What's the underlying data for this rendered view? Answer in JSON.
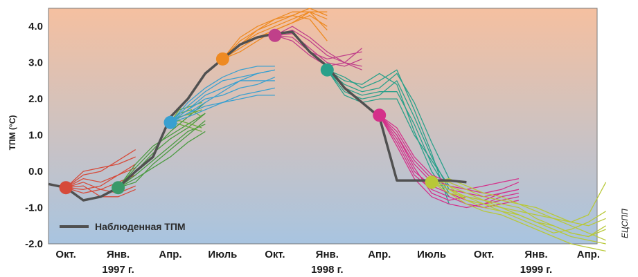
{
  "chart_data": {
    "type": "line",
    "title": "",
    "xlabel": "",
    "ylabel": "ТПМ (°C)",
    "ylim": [
      -2.0,
      4.5
    ],
    "y_ticks": [
      "4.0",
      "3.0",
      "2.0",
      "1.0",
      "0.0",
      "-1.0",
      "-2.0"
    ],
    "y_tick_values": [
      4.0,
      3.0,
      2.0,
      1.0,
      0.0,
      -1.0,
      -2.0
    ],
    "x_ticks": [
      "Окт.",
      "Янв.",
      "Апр.",
      "Июль",
      "Окт.",
      "Янв.",
      "Апр.",
      "Июль",
      "Окт.",
      "Янв.",
      "Апр."
    ],
    "x_tick_index": [
      0,
      3,
      6,
      9,
      12,
      15,
      18,
      21,
      24,
      27,
      30
    ],
    "year_labels": [
      {
        "text": "1997 г.",
        "index": 3
      },
      {
        "text": "1998 г.",
        "index": 15
      },
      {
        "text": "1999 г.",
        "index": 27
      }
    ],
    "xlim": [
      -1,
      30.5
    ],
    "grid": false,
    "legend_position": "bottom-left",
    "legend": "Наблюденная ТПМ",
    "background": {
      "top": "#f5c0a0",
      "bottom": "#a8c4e0"
    },
    "observed": {
      "name": "Наблюденная ТПМ",
      "color": "#505050",
      "x": [
        -1,
        0,
        1,
        2,
        3,
        4,
        5,
        6,
        7,
        8,
        9,
        10,
        11,
        12,
        13,
        14,
        15,
        16,
        17,
        18,
        19,
        20,
        21,
        22,
        23
      ],
      "y": [
        -0.35,
        -0.45,
        -0.8,
        -0.7,
        -0.45,
        0.0,
        0.4,
        1.5,
        2.0,
        2.7,
        3.1,
        3.5,
        3.7,
        3.8,
        3.85,
        3.3,
        2.9,
        2.3,
        1.9,
        1.5,
        -0.25,
        -0.25,
        -0.25,
        -0.25,
        -0.3
      ]
    },
    "forecast_starts": [
      {
        "x": 0,
        "y": -0.45,
        "color": "#d64a3a"
      },
      {
        "x": 3,
        "y": -0.45,
        "color": "#3a9a6a"
      },
      {
        "x": 6,
        "y": 1.35,
        "color": "#3aa0d0"
      },
      {
        "x": 9,
        "y": 3.1,
        "color": "#ee8a22"
      },
      {
        "x": 12,
        "y": 3.75,
        "color": "#c0408a"
      },
      {
        "x": 15,
        "y": 2.8,
        "color": "#2aa08a"
      },
      {
        "x": 18,
        "y": 1.55,
        "color": "#d4308a"
      },
      {
        "x": 21,
        "y": -0.3,
        "color": "#b8c838"
      }
    ],
    "forecast_groups": [
      {
        "color": "#d64a3a",
        "start": [
          0,
          -0.45
        ],
        "x_offsets": [
          1,
          2,
          3,
          4
        ],
        "members": [
          [
            -0.2,
            -0.3,
            -0.1,
            0.1
          ],
          [
            -0.3,
            -0.5,
            -0.6,
            -0.4
          ],
          [
            -0.5,
            -0.4,
            -0.1,
            0.2
          ],
          [
            0.0,
            0.1,
            0.2,
            0.4
          ],
          [
            -0.4,
            -0.7,
            -0.7,
            -0.5
          ],
          [
            -0.1,
            0.0,
            0.3,
            0.6
          ],
          [
            -0.6,
            -0.5,
            -0.3,
            -0.1
          ]
        ]
      },
      {
        "color": "#4a9a40",
        "start": [
          3,
          -0.45
        ],
        "x_offsets": [
          1,
          2,
          3,
          4,
          5
        ],
        "members": [
          [
            -0.1,
            0.3,
            0.7,
            1.1,
            1.3
          ],
          [
            0.0,
            0.5,
            0.9,
            1.2,
            1.6
          ],
          [
            -0.3,
            0.2,
            0.6,
            1.0,
            1.4
          ],
          [
            0.1,
            0.6,
            1.1,
            1.5,
            1.9
          ],
          [
            -0.2,
            0.1,
            0.4,
            0.8,
            1.1
          ],
          [
            0.2,
            0.7,
            1.0,
            1.3,
            1.6
          ]
        ]
      },
      {
        "color": "#6aaa3a",
        "start": [
          6,
          1.35
        ],
        "x_offsets": [
          0.5,
          1.2,
          1.8
        ],
        "members": [
          [
            1.6,
            1.7,
            1.5
          ],
          [
            1.4,
            1.3,
            1.2
          ],
          [
            1.5,
            1.6,
            1.7
          ],
          [
            1.7,
            1.8,
            1.9
          ],
          [
            1.3,
            1.2,
            1.1
          ]
        ]
      },
      {
        "color": "#3aa0d0",
        "start": [
          6,
          1.35
        ],
        "x_offsets": [
          1,
          2,
          3,
          4,
          5,
          6
        ],
        "members": [
          [
            1.6,
            1.9,
            2.2,
            2.5,
            2.7,
            2.8
          ],
          [
            1.7,
            2.0,
            2.1,
            2.3,
            2.4,
            2.6
          ],
          [
            1.8,
            2.2,
            2.5,
            2.6,
            2.7,
            2.8
          ],
          [
            1.5,
            1.7,
            1.9,
            2.1,
            2.2,
            2.3
          ],
          [
            1.9,
            2.3,
            2.6,
            2.8,
            2.9,
            2.9
          ],
          [
            1.6,
            1.8,
            1.9,
            2.0,
            2.1,
            2.1
          ],
          [
            1.7,
            2.1,
            2.3,
            2.5,
            2.5,
            2.5
          ]
        ]
      },
      {
        "color": "#ee8a22",
        "start": [
          9,
          3.1
        ],
        "x_offsets": [
          1,
          2,
          3,
          4,
          5,
          6
        ],
        "members": [
          [
            3.5,
            3.8,
            4.0,
            4.2,
            4.4,
            4.4
          ],
          [
            3.6,
            3.9,
            4.1,
            4.3,
            4.5,
            4.3
          ],
          [
            3.4,
            3.7,
            3.9,
            4.1,
            4.3,
            4.0
          ],
          [
            3.5,
            3.9,
            4.2,
            4.4,
            4.4,
            3.9
          ],
          [
            3.7,
            4.0,
            4.2,
            4.3,
            4.2,
            3.6
          ],
          [
            3.3,
            3.6,
            3.9,
            4.1,
            4.4,
            4.2
          ]
        ]
      },
      {
        "color": "#c0408a",
        "start": [
          12,
          3.75
        ],
        "x_offsets": [
          1,
          2,
          3,
          4,
          5
        ],
        "members": [
          [
            3.9,
            3.6,
            3.2,
            3.0,
            2.9
          ],
          [
            3.8,
            3.4,
            3.0,
            2.9,
            3.1
          ],
          [
            3.7,
            3.3,
            3.1,
            3.2,
            3.3
          ],
          [
            4.0,
            3.7,
            3.3,
            3.0,
            2.8
          ],
          [
            3.6,
            3.2,
            2.9,
            3.0,
            3.4
          ]
        ]
      },
      {
        "color": "#2aa08a",
        "start": [
          15,
          2.8
        ],
        "x_offsets": [
          1,
          2,
          3,
          4,
          5,
          6,
          7
        ],
        "members": [
          [
            2.4,
            2.2,
            2.3,
            2.7,
            1.9,
            0.8,
            -0.2
          ],
          [
            2.2,
            2.0,
            2.1,
            2.5,
            1.5,
            0.4,
            -0.5
          ],
          [
            2.6,
            2.3,
            2.5,
            2.8,
            1.7,
            0.5,
            -0.9
          ],
          [
            2.3,
            2.1,
            2.2,
            2.2,
            1.3,
            0.2,
            -0.6
          ],
          [
            2.5,
            2.4,
            2.7,
            2.4,
            1.1,
            0.0,
            -0.7
          ],
          [
            2.1,
            1.9,
            2.0,
            2.0,
            1.0,
            0.3,
            -0.4
          ]
        ]
      },
      {
        "color": "#d4308a",
        "start": [
          18,
          1.55
        ],
        "x_offsets": [
          1,
          2,
          3,
          4,
          5,
          6,
          7,
          8
        ],
        "members": [
          [
            1.0,
            0.2,
            -0.3,
            -0.5,
            -0.6,
            -0.7,
            -0.6,
            -0.5
          ],
          [
            0.9,
            0.0,
            -0.4,
            -0.6,
            -0.8,
            -0.9,
            -0.8,
            -0.7
          ],
          [
            1.2,
            0.4,
            -0.1,
            -0.3,
            -0.5,
            -0.6,
            -0.5,
            -0.3
          ],
          [
            0.8,
            -0.1,
            -0.5,
            -0.7,
            -0.9,
            -1.0,
            -0.9,
            -0.8
          ],
          [
            1.1,
            0.3,
            -0.2,
            -0.4,
            -0.5,
            -0.4,
            -0.3,
            -0.2
          ],
          [
            1.0,
            0.1,
            -0.6,
            -0.8,
            -0.7,
            -0.8,
            -0.6,
            -0.5
          ],
          [
            0.7,
            -0.2,
            -0.7,
            -0.9,
            -1.0,
            -0.9,
            -0.7,
            -0.6
          ]
        ]
      },
      {
        "color": "#b8c838",
        "start": [
          21,
          -0.3
        ],
        "x_offsets": [
          1,
          2,
          3,
          4,
          5,
          6,
          7,
          8,
          9,
          10
        ],
        "members": [
          [
            -0.5,
            -0.8,
            -0.9,
            -1.0,
            -1.2,
            -1.4,
            -1.6,
            -1.8,
            -1.9,
            -2.0
          ],
          [
            -0.4,
            -0.6,
            -0.8,
            -0.9,
            -1.0,
            -1.3,
            -1.5,
            -1.7,
            -1.8,
            -1.6
          ],
          [
            -0.6,
            -0.9,
            -1.1,
            -1.2,
            -1.4,
            -1.6,
            -1.8,
            -2.0,
            -2.1,
            -2.2
          ],
          [
            -0.3,
            -0.5,
            -0.7,
            -0.8,
            -0.9,
            -1.0,
            -1.2,
            -1.4,
            -1.5,
            -1.3
          ],
          [
            -0.5,
            -0.7,
            -0.8,
            -1.0,
            -1.1,
            -1.2,
            -1.3,
            -1.5,
            -1.7,
            -1.9
          ],
          [
            -0.4,
            -0.8,
            -1.0,
            -1.1,
            -1.3,
            -1.5,
            -1.7,
            -1.6,
            -1.4,
            -1.1
          ],
          [
            -0.6,
            -0.7,
            -0.9,
            -1.1,
            -1.2,
            -1.4,
            -1.5,
            -1.7,
            -1.8,
            -1.5
          ],
          [
            -0.2,
            -0.4,
            -0.6,
            -0.7,
            -0.9,
            -1.1,
            -1.3,
            -1.4,
            -1.2,
            -0.3
          ]
        ]
      }
    ]
  },
  "credit": "ЕЦСПП"
}
